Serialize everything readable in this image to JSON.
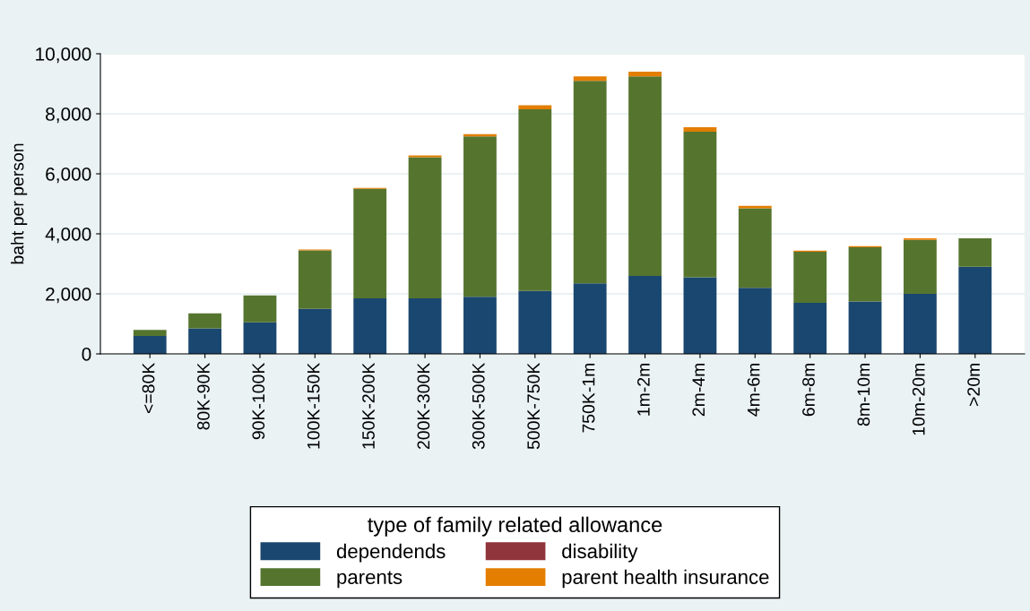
{
  "chart_data": {
    "type": "bar",
    "stacked": true,
    "ylabel": "baht per person",
    "legend_title": "type of family related allowance",
    "legend": "bottom",
    "grid": "y",
    "categories": [
      "<=80K",
      "80K-90K",
      "90K-100K",
      "100K-150K",
      "150K-200K",
      "200K-300K",
      "300K-500K",
      "500K-750K",
      "750K-1m",
      "1m-2m",
      "2m-4m",
      "4m-6m",
      "6m-8m",
      "8m-10m",
      "10m-20m",
      ">20m"
    ],
    "ylim": [
      0,
      10000
    ],
    "yticks": [
      0,
      {
        "value": 2000,
        "label": "2,000"
      },
      {
        "value": 4000,
        "label": "4,000"
      },
      {
        "value": 6000,
        "label": "6,000"
      },
      {
        "value": 8000,
        "label": "8,000"
      },
      {
        "value": 10000,
        "label": "10,000"
      }
    ],
    "series": [
      {
        "name": "dependends",
        "color": "#1a476f",
        "values": [
          600,
          850,
          1050,
          1500,
          1850,
          1850,
          1900,
          2100,
          2350,
          2600,
          2550,
          2200,
          1700,
          1750,
          2000,
          2900
        ]
      },
      {
        "name": "parents",
        "color": "#55752f",
        "values": [
          200,
          500,
          900,
          1950,
          3650,
          4700,
          5350,
          6050,
          6750,
          6650,
          4850,
          2650,
          1700,
          1800,
          1800,
          950
        ]
      },
      {
        "name": "disability",
        "color": "#90353b",
        "values": [
          0,
          0,
          0,
          0,
          0,
          0,
          0,
          0,
          0,
          0,
          0,
          0,
          0,
          0,
          0,
          0
        ]
      },
      {
        "name": "parent health insurance",
        "color": "#e37e00",
        "values": [
          0,
          0,
          0,
          30,
          30,
          60,
          70,
          130,
          150,
          150,
          150,
          80,
          40,
          40,
          50,
          0
        ]
      }
    ]
  }
}
